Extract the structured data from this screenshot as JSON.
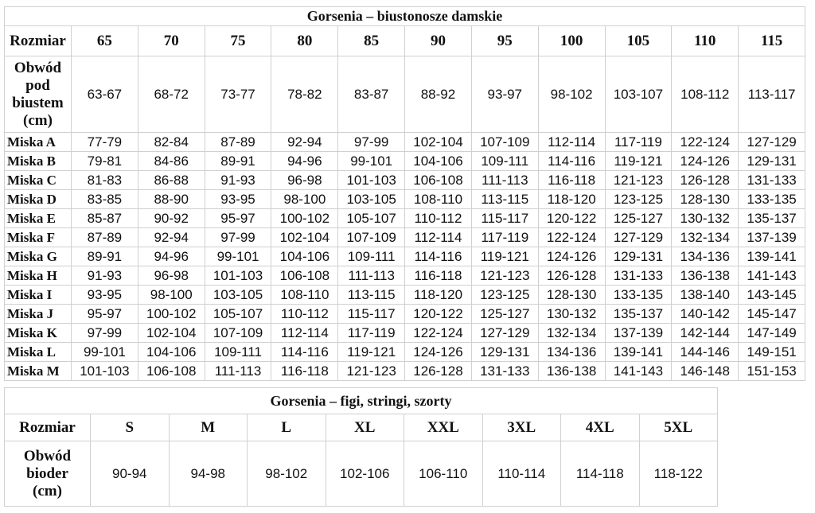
{
  "bra_table": {
    "title": "Gorsenia – biustonosze damskie",
    "header_label": "Rozmiar",
    "sizes": [
      "65",
      "70",
      "75",
      "80",
      "85",
      "90",
      "95",
      "100",
      "105",
      "110",
      "115"
    ],
    "underbust": {
      "label_lines": [
        "Obwód",
        "pod",
        "biustem",
        "(cm)"
      ],
      "values": [
        "63-67",
        "68-72",
        "73-77",
        "78-82",
        "83-87",
        "88-92",
        "93-97",
        "98-102",
        "103-107",
        "108-112",
        "113-117"
      ]
    },
    "cups": [
      {
        "label": "Miska A",
        "values": [
          "77-79",
          "82-84",
          "87-89",
          "92-94",
          "97-99",
          "102-104",
          "107-109",
          "112-114",
          "117-119",
          "122-124",
          "127-129"
        ]
      },
      {
        "label": "Miska B",
        "values": [
          "79-81",
          "84-86",
          "89-91",
          "94-96",
          "99-101",
          "104-106",
          "109-111",
          "114-116",
          "119-121",
          "124-126",
          "129-131"
        ]
      },
      {
        "label": "Miska C",
        "values": [
          "81-83",
          "86-88",
          "91-93",
          "96-98",
          "101-103",
          "106-108",
          "111-113",
          "116-118",
          "121-123",
          "126-128",
          "131-133"
        ]
      },
      {
        "label": "Miska D",
        "values": [
          "83-85",
          "88-90",
          "93-95",
          "98-100",
          "103-105",
          "108-110",
          "113-115",
          "118-120",
          "123-125",
          "128-130",
          "133-135"
        ]
      },
      {
        "label": "Miska E",
        "values": [
          "85-87",
          "90-92",
          "95-97",
          "100-102",
          "105-107",
          "110-112",
          "115-117",
          "120-122",
          "125-127",
          "130-132",
          "135-137"
        ]
      },
      {
        "label": "Miska F",
        "values": [
          "87-89",
          "92-94",
          "97-99",
          "102-104",
          "107-109",
          "112-114",
          "117-119",
          "122-124",
          "127-129",
          "132-134",
          "137-139"
        ]
      },
      {
        "label": "Miska G",
        "values": [
          "89-91",
          "94-96",
          "99-101",
          "104-106",
          "109-111",
          "114-116",
          "119-121",
          "124-126",
          "129-131",
          "134-136",
          "139-141"
        ]
      },
      {
        "label": "Miska H",
        "values": [
          "91-93",
          "96-98",
          "101-103",
          "106-108",
          "111-113",
          "116-118",
          "121-123",
          "126-128",
          "131-133",
          "136-138",
          "141-143"
        ]
      },
      {
        "label": "Miska I",
        "values": [
          "93-95",
          "98-100",
          "103-105",
          "108-110",
          "113-115",
          "118-120",
          "123-125",
          "128-130",
          "133-135",
          "138-140",
          "143-145"
        ]
      },
      {
        "label": "Miska J",
        "values": [
          "95-97",
          "100-102",
          "105-107",
          "110-112",
          "115-117",
          "120-122",
          "125-127",
          "130-132",
          "135-137",
          "140-142",
          "145-147"
        ]
      },
      {
        "label": "Miska K",
        "values": [
          "97-99",
          "102-104",
          "107-109",
          "112-114",
          "117-119",
          "122-124",
          "127-129",
          "132-134",
          "137-139",
          "142-144",
          "147-149"
        ]
      },
      {
        "label": "Miska L",
        "values": [
          "99-101",
          "104-106",
          "109-111",
          "114-116",
          "119-121",
          "124-126",
          "129-131",
          "134-136",
          "139-141",
          "144-146",
          "149-151"
        ]
      },
      {
        "label": "Miska M",
        "values": [
          "101-103",
          "106-108",
          "111-113",
          "116-118",
          "121-123",
          "126-128",
          "131-133",
          "136-138",
          "141-143",
          "146-148",
          "151-153"
        ]
      }
    ]
  },
  "brief_table": {
    "title": "Gorsenia – figi, stringi, szorty",
    "header_label": "Rozmiar",
    "sizes": [
      "S",
      "M",
      "L",
      "XL",
      "XXL",
      "3XL",
      "4XL",
      "5XL"
    ],
    "hips": {
      "label_lines": [
        "Obwód",
        "bioder",
        "(cm)"
      ],
      "values": [
        "90-94",
        "94-98",
        "98-102",
        "102-106",
        "106-110",
        "110-114",
        "114-118",
        "118-122"
      ]
    }
  }
}
